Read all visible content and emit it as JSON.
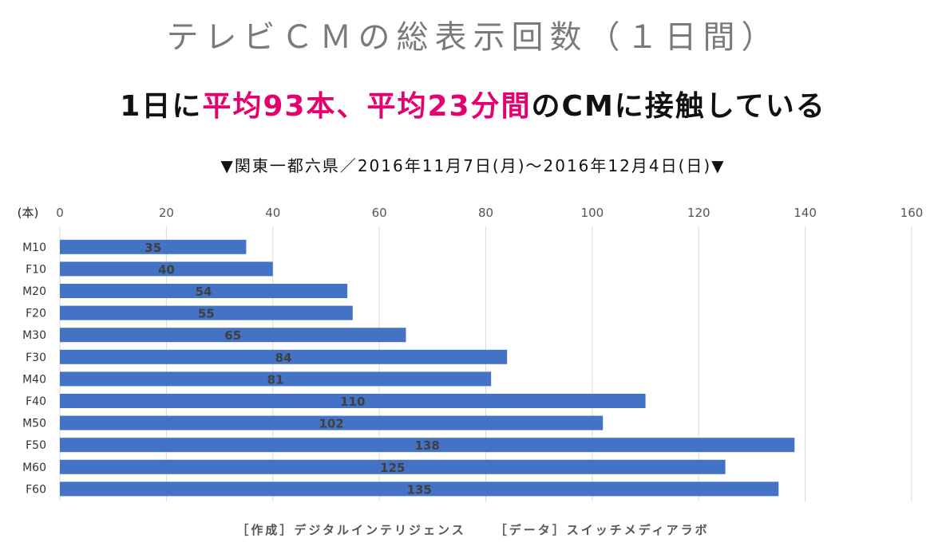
{
  "header": {
    "title": "テレビＣＭの総表示回数（１日間）",
    "headline_pre": "1日に",
    "headline_hl1": "平均93本、平均23分間",
    "headline_post": "のCMに接触している",
    "period": "▼関東一都六県／2016年11月7日(月)～2016年12月4日(日)▼"
  },
  "footer": {
    "credit_author": "［作成］デジタルインテリジェンス",
    "credit_data": "［データ］スイッチメディアラボ"
  },
  "colors": {
    "bar": "#4472c4",
    "grid": "#d9d9d9",
    "label": "#404040",
    "accent": "#e6006e"
  },
  "chart_data": {
    "type": "bar",
    "orientation": "horizontal",
    "unit_label": "(本)",
    "categories": [
      "M10",
      "F10",
      "M20",
      "F20",
      "M30",
      "F30",
      "M40",
      "F40",
      "M50",
      "F50",
      "M60",
      "F60"
    ],
    "values": [
      35,
      40,
      54,
      55,
      65,
      84,
      81,
      110,
      102,
      138,
      125,
      135
    ],
    "xlim": [
      0,
      160
    ],
    "xticks": [
      0,
      20,
      40,
      60,
      80,
      100,
      120,
      140,
      160
    ],
    "grid": true,
    "axis_position": "top"
  }
}
